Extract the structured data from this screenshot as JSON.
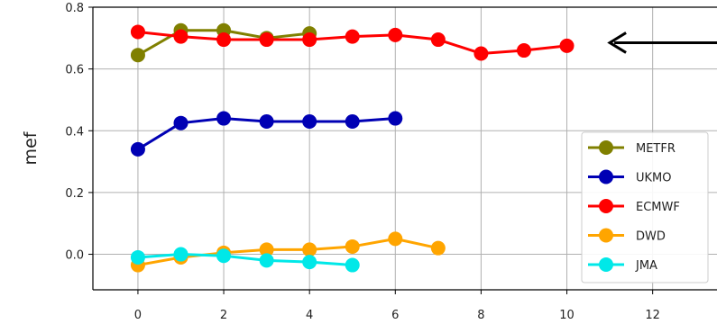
{
  "chart_data": {
    "type": "line",
    "title": "",
    "xlabel": "",
    "ylabel": "mef",
    "xlim": [
      -1.05,
      13.5
    ],
    "ylim": [
      -0.115,
      0.8
    ],
    "xticks": [
      0,
      2,
      4,
      6,
      8,
      10,
      12
    ],
    "yticks": [
      0.0,
      0.2,
      0.4,
      0.6,
      0.8
    ],
    "xtick_labels": [
      "0",
      "2",
      "4",
      "6",
      "8",
      "10",
      "12"
    ],
    "ytick_labels": [
      "0.0",
      "0.2",
      "0.4",
      "0.6",
      "0.8"
    ],
    "grid": true,
    "legend_position": "lower-right",
    "series": [
      {
        "name": "METFR",
        "color": "#808000",
        "x": [
          0,
          1,
          2,
          3,
          4
        ],
        "y": [
          0.645,
          0.725,
          0.725,
          0.7,
          0.715
        ]
      },
      {
        "name": "UKMO",
        "color": "#0000b4",
        "x": [
          0,
          1,
          2,
          3,
          4,
          5,
          6
        ],
        "y": [
          0.34,
          0.425,
          0.44,
          0.43,
          0.43,
          0.43,
          0.44
        ]
      },
      {
        "name": "ECMWF",
        "color": "#ff0000",
        "x": [
          0,
          1,
          2,
          3,
          4,
          5,
          6,
          7,
          8,
          9,
          10
        ],
        "y": [
          0.72,
          0.705,
          0.695,
          0.695,
          0.695,
          0.705,
          0.71,
          0.695,
          0.65,
          0.66,
          0.675
        ]
      },
      {
        "name": "DWD",
        "color": "#ffa500",
        "x": [
          0,
          1,
          2,
          3,
          4,
          5,
          6,
          7
        ],
        "y": [
          -0.035,
          -0.01,
          0.005,
          0.015,
          0.015,
          0.025,
          0.05,
          0.02
        ]
      },
      {
        "name": "JMA",
        "color": "#00e8e8",
        "x": [
          0,
          1,
          2,
          3,
          4,
          5
        ],
        "y": [
          -0.01,
          0.0,
          -0.005,
          -0.02,
          -0.025,
          -0.035
        ]
      }
    ],
    "annotations": [
      {
        "type": "arrow",
        "direction": "left",
        "color": "#000000",
        "x": 11.0,
        "y": 0.685
      }
    ]
  }
}
